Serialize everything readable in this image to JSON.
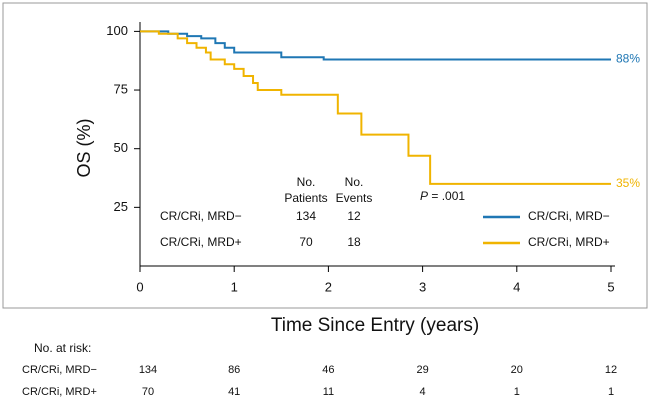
{
  "chart_data": {
    "type": "line",
    "step": true,
    "ylabel": "OS (%)",
    "xlabel": "Time Since Entry (years)",
    "xlim": [
      0,
      5
    ],
    "ylim": [
      0,
      104
    ],
    "xticks": [
      0,
      1,
      2,
      3,
      4,
      5
    ],
    "yticks": [
      25,
      50,
      75,
      100
    ],
    "series": [
      {
        "name": "CR/CRi, MRD−",
        "color": "#1f77b4",
        "end_label": "88%",
        "x": [
          0,
          0.3,
          0.5,
          0.65,
          0.8,
          0.9,
          1.0,
          1.5,
          1.95,
          5
        ],
        "values": [
          100,
          99,
          98,
          97,
          95,
          93,
          91,
          89,
          88,
          88
        ]
      },
      {
        "name": "CR/CRi, MRD+",
        "color": "#f0b400",
        "end_label": "35%",
        "x": [
          0,
          0.2,
          0.4,
          0.5,
          0.6,
          0.7,
          0.75,
          0.9,
          1.0,
          1.1,
          1.2,
          1.25,
          1.5,
          2.1,
          2.35,
          2.85,
          3.08,
          5
        ],
        "values": [
          100,
          99,
          97,
          95,
          93,
          91,
          88,
          86,
          84,
          81,
          78,
          75,
          73,
          65,
          56,
          47,
          35,
          35
        ]
      }
    ],
    "pvalue": {
      "symbol": "P",
      "text": "= .001"
    },
    "events_table": {
      "headers": [
        [
          "No.",
          "Patients"
        ],
        [
          "No.",
          "Events"
        ]
      ],
      "rows": [
        [
          134,
          12
        ],
        [
          70,
          18
        ]
      ]
    },
    "at_risk": {
      "title": "No. at risk:",
      "rows": [
        [
          134,
          86,
          46,
          29,
          20,
          12
        ],
        [
          70,
          41,
          11,
          4,
          1,
          1
        ]
      ]
    }
  }
}
